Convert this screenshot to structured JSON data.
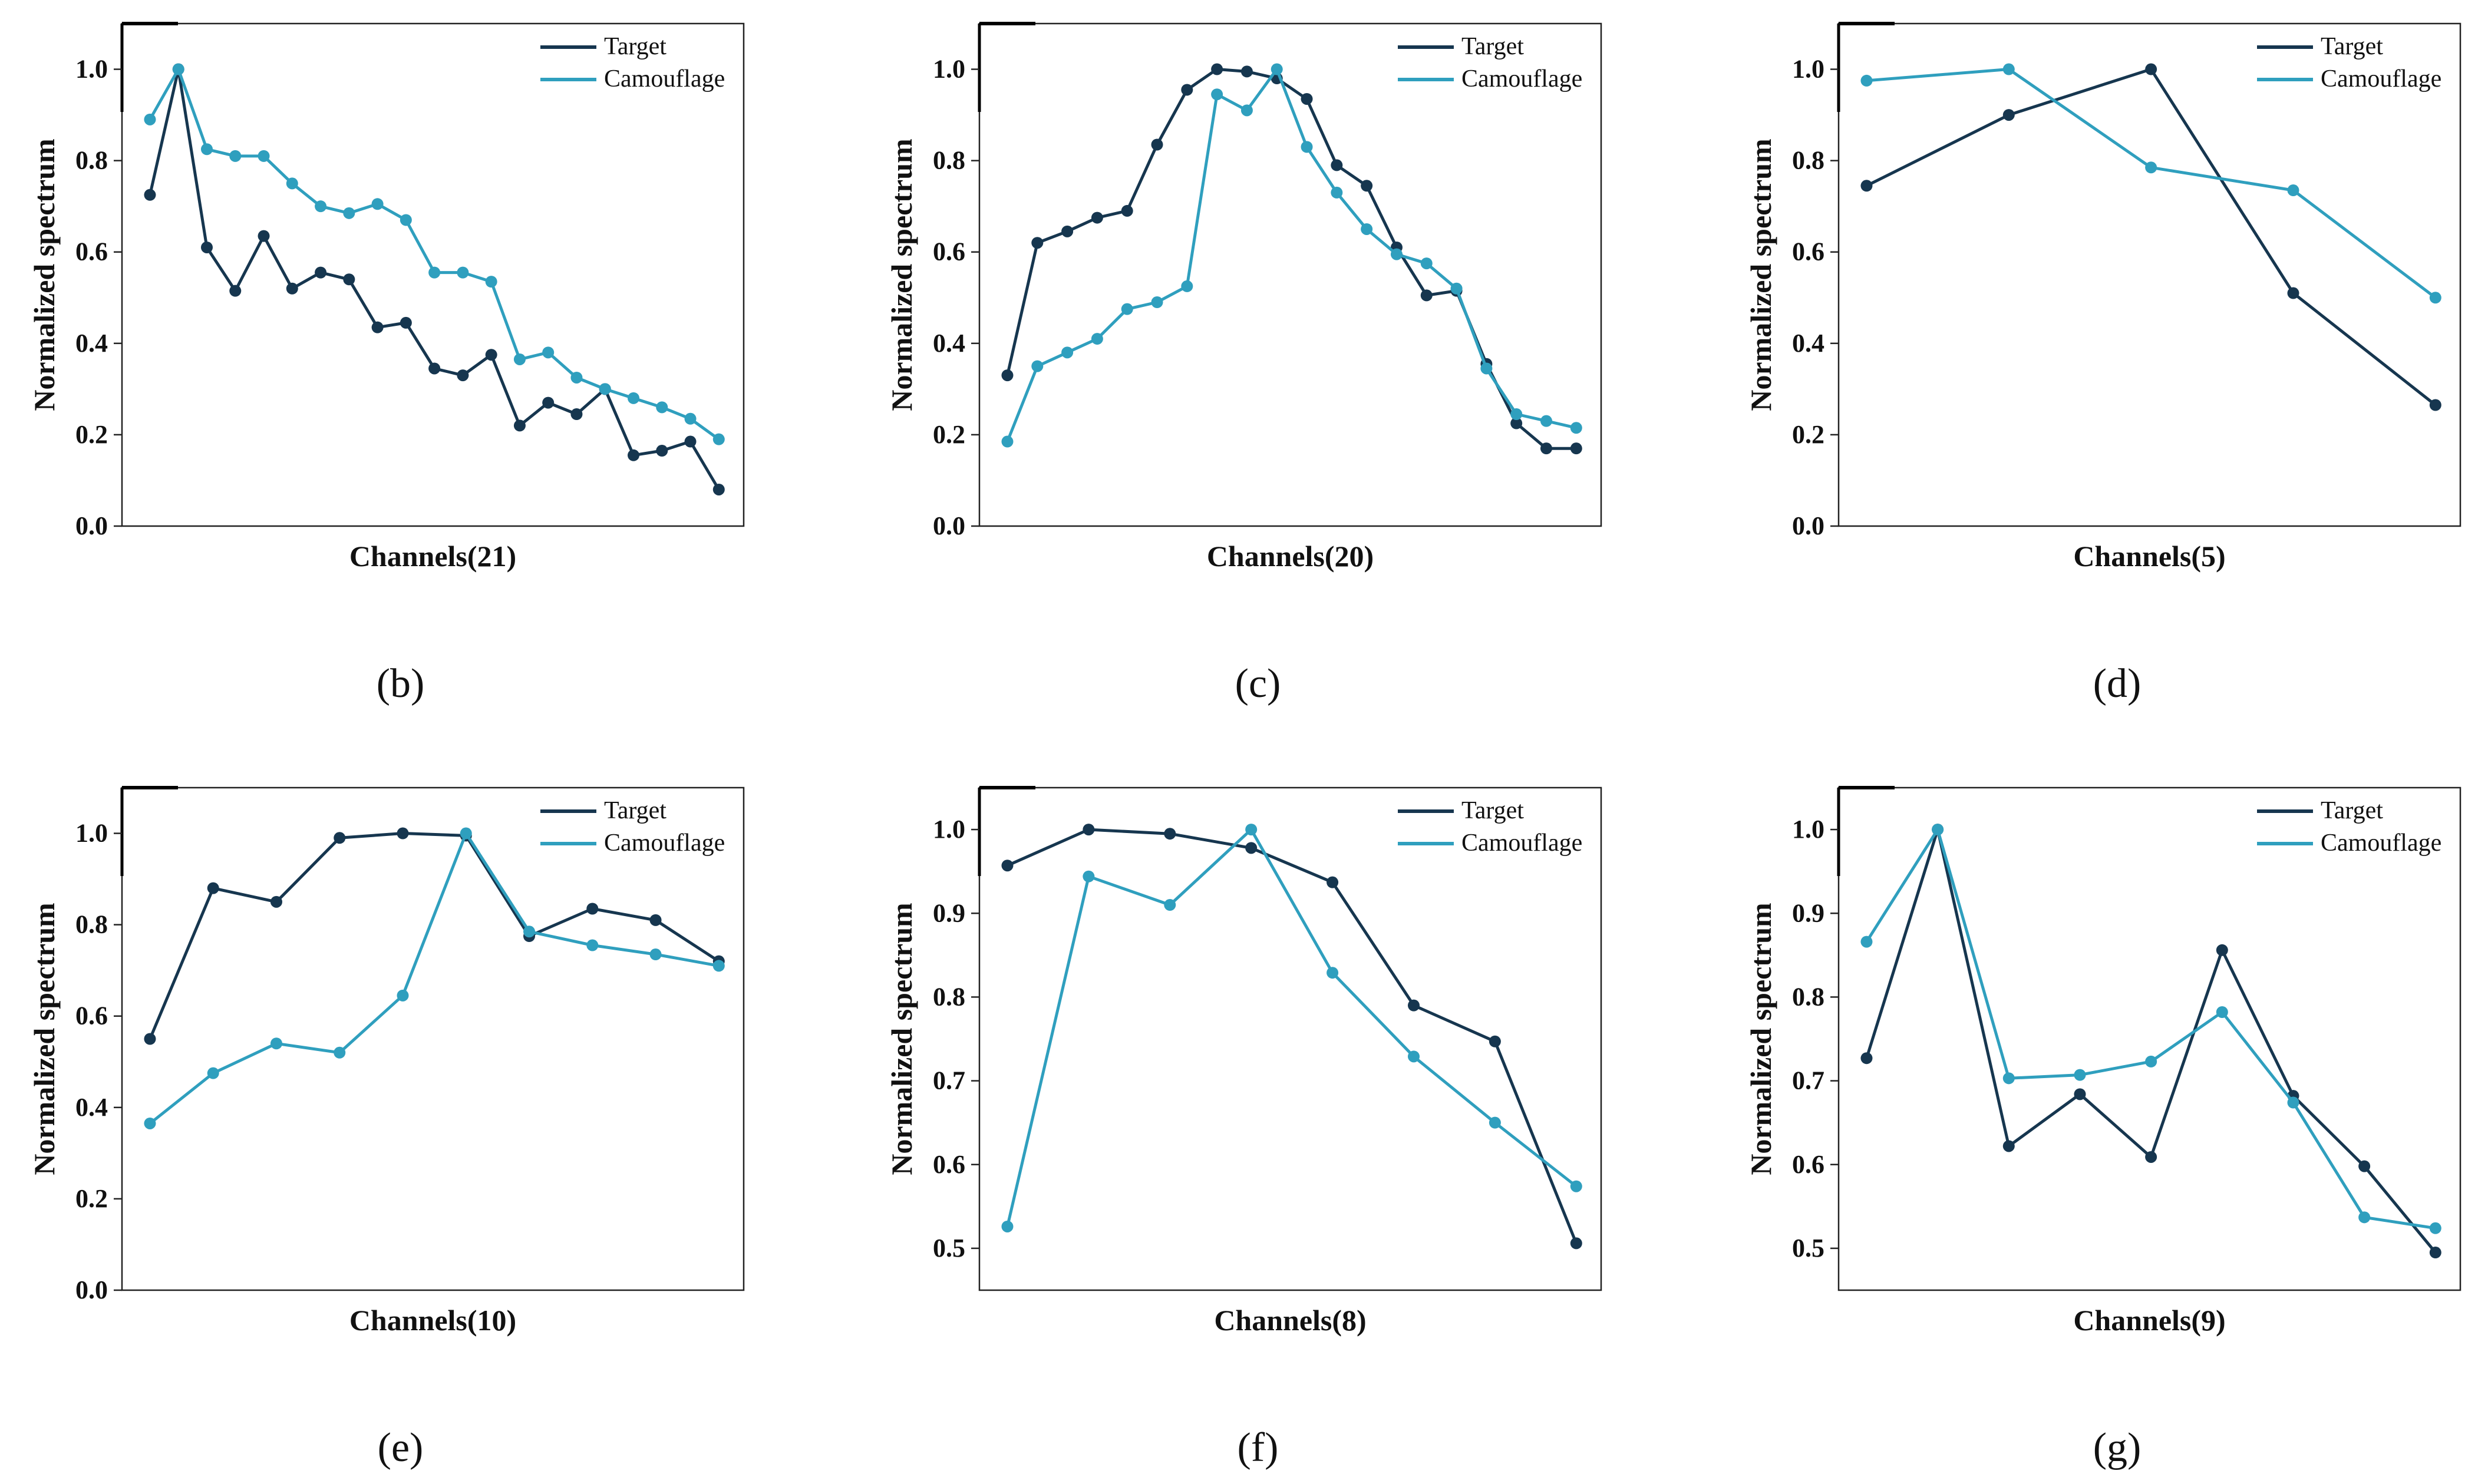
{
  "colors": {
    "target": "#16364f",
    "camouflage": "#2f9fbe",
    "axis": "#222222"
  },
  "chart_data": [
    {
      "type": "line",
      "panel": "b",
      "caption": "(b)",
      "xlabel": "Channels(21)",
      "ylabel": "Normalized spectrum",
      "ylim": [
        0,
        1.1
      ],
      "yticks": [
        "0.0",
        "0.2",
        "0.4",
        "0.6",
        "0.8",
        "1.0"
      ],
      "ytick_values": [
        0,
        0.2,
        0.4,
        0.6,
        0.8,
        1.0
      ],
      "x": [
        1,
        2,
        3,
        4,
        5,
        6,
        7,
        8,
        9,
        10,
        11,
        12,
        13,
        14,
        15,
        16,
        17,
        18,
        19,
        20,
        21
      ],
      "series": [
        {
          "name": "Target",
          "values": [
            0.725,
            1.0,
            0.61,
            0.515,
            0.635,
            0.52,
            0.555,
            0.54,
            0.435,
            0.445,
            0.345,
            0.33,
            0.375,
            0.22,
            0.27,
            0.245,
            0.3,
            0.155,
            0.165,
            0.185,
            0.08
          ]
        },
        {
          "name": "Camouflage",
          "values": [
            0.89,
            1.0,
            0.825,
            0.81,
            0.81,
            0.75,
            0.7,
            0.685,
            0.705,
            0.67,
            0.555,
            0.555,
            0.535,
            0.365,
            0.38,
            0.325,
            0.3,
            0.28,
            0.26,
            0.235,
            0.19
          ]
        }
      ],
      "legend": [
        "Target",
        "Camouflage"
      ]
    },
    {
      "type": "line",
      "panel": "c",
      "caption": "(c)",
      "xlabel": "Channels(20)",
      "ylabel": "Normalized spectrum",
      "ylim": [
        0,
        1.1
      ],
      "yticks": [
        "0.0",
        "0.2",
        "0.4",
        "0.6",
        "0.8",
        "1.0"
      ],
      "ytick_values": [
        0,
        0.2,
        0.4,
        0.6,
        0.8,
        1.0
      ],
      "x": [
        1,
        2,
        3,
        4,
        5,
        6,
        7,
        8,
        9,
        10,
        11,
        12,
        13,
        14,
        15,
        16,
        17,
        18,
        19,
        20
      ],
      "series": [
        {
          "name": "Target",
          "values": [
            0.33,
            0.62,
            0.645,
            0.675,
            0.69,
            0.835,
            0.955,
            1.0,
            0.995,
            0.98,
            0.935,
            0.79,
            0.745,
            0.61,
            0.505,
            0.515,
            0.355,
            0.225,
            0.17,
            0.17
          ]
        },
        {
          "name": "Camouflage",
          "values": [
            0.185,
            0.35,
            0.38,
            0.41,
            0.475,
            0.49,
            0.525,
            0.945,
            0.91,
            1.0,
            0.83,
            0.73,
            0.65,
            0.595,
            0.575,
            0.52,
            0.345,
            0.245,
            0.23,
            0.215
          ]
        }
      ],
      "legend": [
        "Target",
        "Camouflage"
      ]
    },
    {
      "type": "line",
      "panel": "d",
      "caption": "(d)",
      "xlabel": "Channels(5)",
      "ylabel": "Normalized spectrum",
      "ylim": [
        0,
        1.1
      ],
      "yticks": [
        "0.0",
        "0.2",
        "0.4",
        "0.6",
        "0.8",
        "1.0"
      ],
      "ytick_values": [
        0,
        0.2,
        0.4,
        0.6,
        0.8,
        1.0
      ],
      "x": [
        1,
        2,
        3,
        4,
        5
      ],
      "series": [
        {
          "name": "Target",
          "values": [
            0.745,
            0.9,
            1.0,
            0.51,
            0.265
          ]
        },
        {
          "name": "Camouflage",
          "values": [
            0.975,
            1.0,
            0.785,
            0.735,
            0.5
          ]
        }
      ],
      "legend": [
        "Target",
        "Camouflage"
      ]
    },
    {
      "type": "line",
      "panel": "e",
      "caption": "(e)",
      "xlabel": "Channels(10)",
      "ylabel": "Normalized spectrum",
      "ylim": [
        0,
        1.1
      ],
      "yticks": [
        "0.0",
        "0.2",
        "0.4",
        "0.6",
        "0.8",
        "1.0"
      ],
      "ytick_values": [
        0,
        0.2,
        0.4,
        0.6,
        0.8,
        1.0
      ],
      "x": [
        1,
        2,
        3,
        4,
        5,
        6,
        7,
        8,
        9,
        10
      ],
      "series": [
        {
          "name": "Target",
          "values": [
            0.55,
            0.88,
            0.85,
            0.99,
            1.0,
            0.995,
            0.775,
            0.835,
            0.81,
            0.72
          ]
        },
        {
          "name": "Camouflage",
          "values": [
            0.365,
            0.475,
            0.54,
            0.52,
            0.645,
            1.0,
            0.785,
            0.755,
            0.735,
            0.71
          ]
        }
      ],
      "legend": [
        "Target",
        "Camouflage"
      ]
    },
    {
      "type": "line",
      "panel": "f",
      "caption": "(f)",
      "xlabel": "Channels(8)",
      "ylabel": "Normalized spectrum",
      "ylim": [
        0.45,
        1.05
      ],
      "yticks": [
        "0.5",
        "0.6",
        "0.7",
        "0.8",
        "0.9",
        "1.0"
      ],
      "ytick_values": [
        0.5,
        0.6,
        0.7,
        0.8,
        0.9,
        1.0
      ],
      "x": [
        1,
        2,
        3,
        4,
        5,
        6,
        7,
        8
      ],
      "series": [
        {
          "name": "Target",
          "values": [
            0.957,
            1.0,
            0.995,
            0.978,
            0.937,
            0.79,
            0.747,
            0.506
          ]
        },
        {
          "name": "Camouflage",
          "values": [
            0.526,
            0.944,
            0.91,
            1.0,
            0.829,
            0.729,
            0.65,
            0.574
          ]
        }
      ],
      "legend": [
        "Target",
        "Camouflage"
      ]
    },
    {
      "type": "line",
      "panel": "g",
      "caption": "(g)",
      "xlabel": "Channels(9)",
      "ylabel": "Normalized spectrum",
      "ylim": [
        0.45,
        1.05
      ],
      "yticks": [
        "0.5",
        "0.6",
        "0.7",
        "0.8",
        "0.9",
        "1.0"
      ],
      "ytick_values": [
        0.5,
        0.6,
        0.7,
        0.8,
        0.9,
        1.0
      ],
      "x": [
        1,
        2,
        3,
        4,
        5,
        6,
        7,
        8,
        9
      ],
      "series": [
        {
          "name": "Target",
          "values": [
            0.727,
            1.0,
            0.622,
            0.684,
            0.609,
            0.856,
            0.682,
            0.598,
            0.495
          ]
        },
        {
          "name": "Camouflage",
          "values": [
            0.866,
            1.0,
            0.703,
            0.707,
            0.723,
            0.782,
            0.674,
            0.537,
            0.524
          ]
        }
      ],
      "legend": [
        "Target",
        "Camouflage"
      ]
    }
  ]
}
